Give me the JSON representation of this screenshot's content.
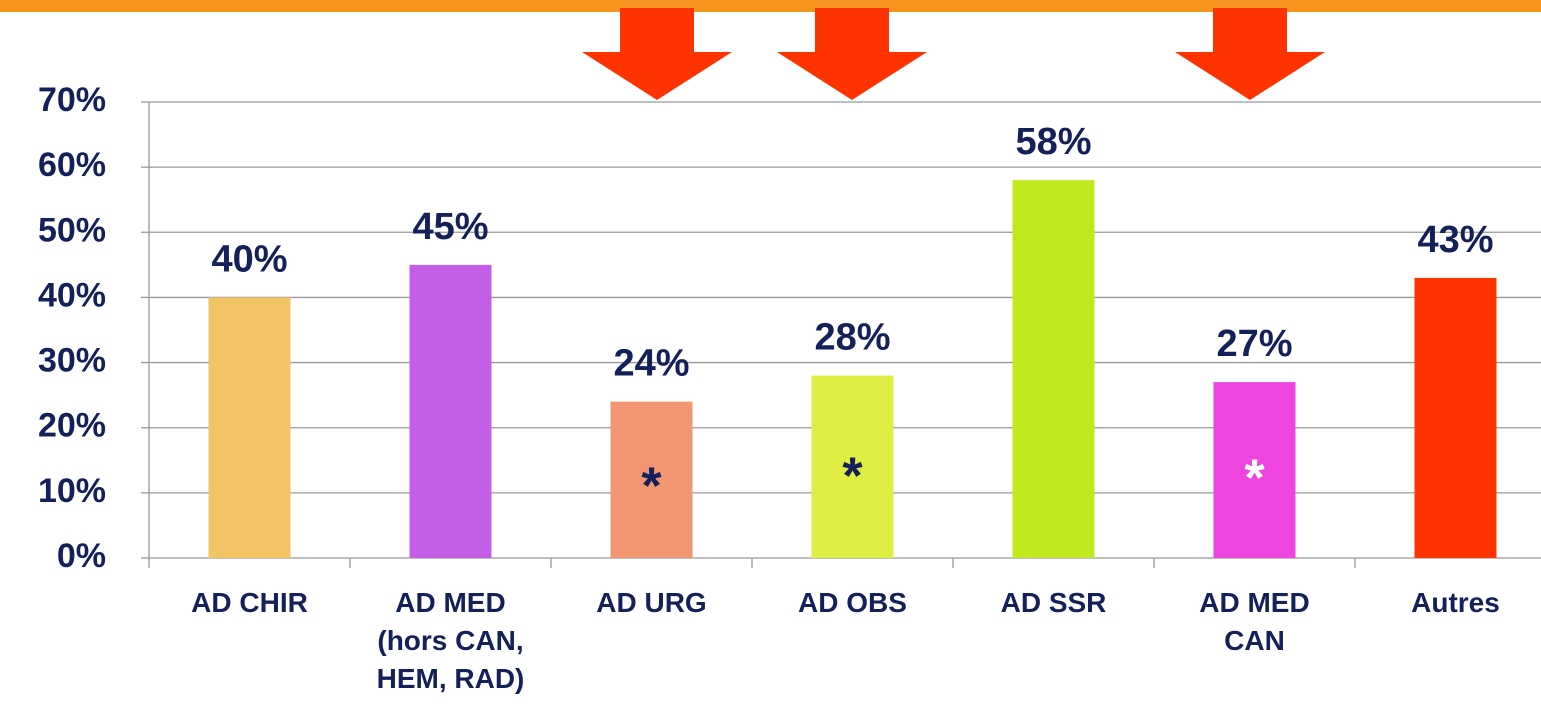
{
  "chart_data": {
    "type": "bar",
    "categories": [
      "AD CHIR",
      "AD MED (hors CAN, HEM, RAD)",
      "AD URG",
      "AD OBS",
      "AD SSR",
      "AD MED CAN",
      "Autres"
    ],
    "values": [
      40,
      45,
      24,
      28,
      58,
      27,
      43
    ],
    "value_labels": [
      "40%",
      "45%",
      "24%",
      "28%",
      "58%",
      "27%",
      "43%"
    ],
    "colors": [
      "#f2c464",
      "#c45ee8",
      "#f29672",
      "#e0ee44",
      "#c0e81e",
      "#ee44e0",
      "#ff3300"
    ],
    "ylim": [
      0,
      70
    ],
    "yticks": [
      {
        "value": 0,
        "label": "0%"
      },
      {
        "value": 10,
        "label": "10%"
      },
      {
        "value": 20,
        "label": "20%"
      },
      {
        "value": 30,
        "label": "30%"
      },
      {
        "value": 40,
        "label": "40%"
      },
      {
        "value": 50,
        "label": "50%"
      },
      {
        "value": 60,
        "label": "60%"
      },
      {
        "value": 70,
        "label": "70%"
      }
    ],
    "grid": true,
    "annotations": [
      {
        "text": "*",
        "category": 2,
        "color": "#13205a"
      },
      {
        "text": "*",
        "category": 3,
        "color": "#13205a"
      },
      {
        "text": "*",
        "category": 5,
        "color": "#ffffff"
      }
    ]
  }
}
